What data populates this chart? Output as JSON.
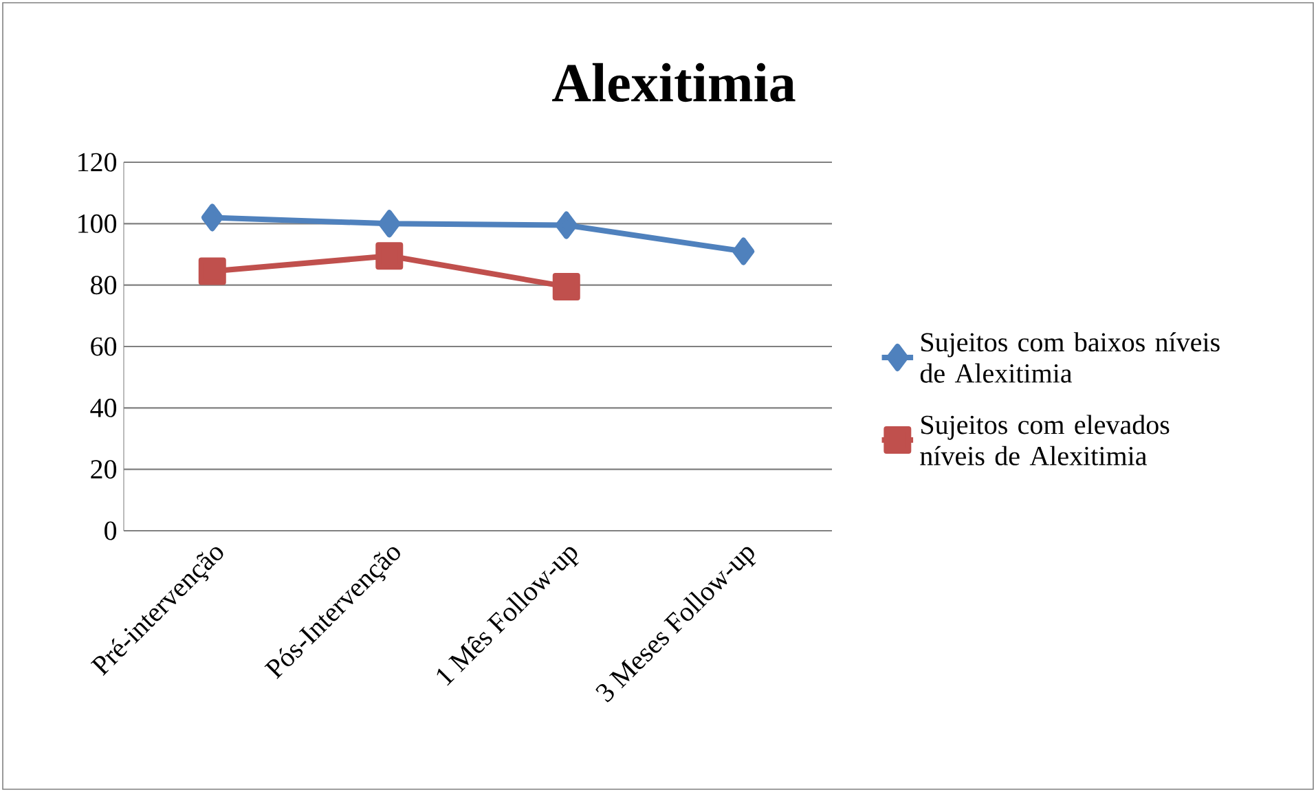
{
  "chart_data": {
    "type": "line",
    "title": "Alexitimia",
    "categories": [
      "Pré-intervenção",
      "Pós-Intervenção",
      "1 Mês Follow-up",
      "3 Meses Follow-up"
    ],
    "series": [
      {
        "name": "Sujeitos com baixos níveis de Alexitimia",
        "color": "#4f81bd",
        "marker": "diamond",
        "values": [
          102,
          100,
          99.5,
          91
        ]
      },
      {
        "name": "Sujeitos com elevados níveis de Alexitimia",
        "color": "#c0504d",
        "marker": "square",
        "values": [
          84.5,
          89.5,
          79.5,
          null
        ]
      }
    ],
    "ylim": [
      0,
      120
    ],
    "yticks": [
      0,
      20,
      40,
      60,
      80,
      100,
      120
    ],
    "grid": "y",
    "legend": "right",
    "line_style": "solid"
  }
}
